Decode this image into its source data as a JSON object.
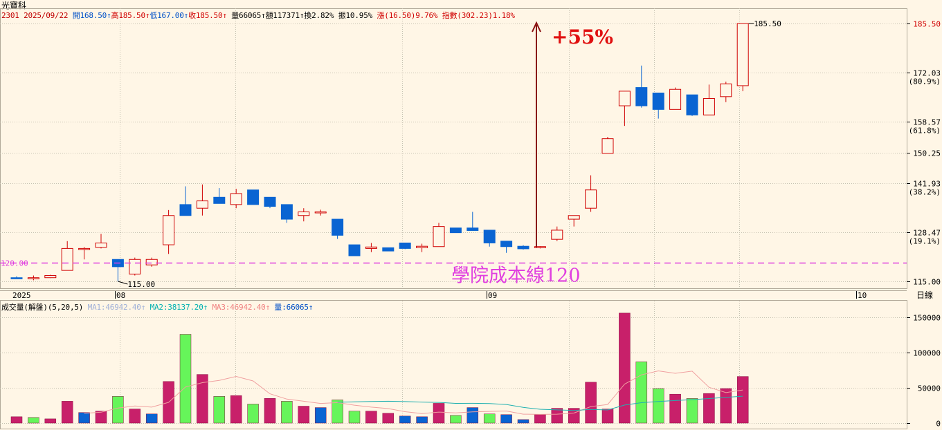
{
  "app": {
    "title": "光寶科"
  },
  "info_bar": [
    {
      "text": "2301 2025/09/22",
      "color": "#c00000"
    },
    {
      "text": " 開168.50↑",
      "color": "#0050c8"
    },
    {
      "text": "高185.50↑",
      "color": "#d00000"
    },
    {
      "text": "低167.00↑",
      "color": "#0050c8"
    },
    {
      "text": "收185.50↑",
      "color": "#d00000"
    },
    {
      "text": " 量66065↑",
      "color": "#000000"
    },
    {
      "text": "額117371↑",
      "color": "#000000"
    },
    {
      "text": "換2.82%",
      "color": "#000000"
    },
    {
      "text": " 振10.95%",
      "color": "#000000"
    },
    {
      "text": " 漲(16.50)9.76%",
      "color": "#d00000"
    },
    {
      "text": " 指數(302.23)1.18%",
      "color": "#d00000"
    }
  ],
  "volume_bar": [
    {
      "text": "成交量(解盤)(5,20,5)",
      "color": "#000000"
    },
    {
      "text": " MA1:46942.40↑",
      "color": "#9fb0d8"
    },
    {
      "text": " MA2:38137.20↑",
      "color": "#00b0b0"
    },
    {
      "text": " MA3:46942.40↑",
      "color": "#f08080"
    },
    {
      "text": " 量:66065↑",
      "color": "#0050c8"
    }
  ],
  "colors": {
    "up": "#d00000",
    "down": "#0a64d2",
    "vol_up": "#c8206a",
    "vol_down": "#66f55a",
    "background": "#fff6e6",
    "grid": "#c8c0b0",
    "ma_line": "#e040e0"
  },
  "chart_data": [
    {
      "type": "candlestick",
      "ylim": [
        112,
        188
      ],
      "y_ticks": [
        {
          "v": 115.0,
          "label": "115.00"
        },
        {
          "v": 128.47,
          "label": "128.47",
          "sub": "(19.1%)"
        },
        {
          "v": 141.93,
          "label": "141.93",
          "sub": "(38.2%)"
        },
        {
          "v": 150.25,
          "label": "150.25"
        },
        {
          "v": 158.57,
          "label": "158.57",
          "sub": "(61.8%)"
        },
        {
          "v": 172.03,
          "label": "172.03",
          "sub": "(80.9%)"
        },
        {
          "v": 185.5,
          "label": "185.50",
          "highlight": true
        }
      ],
      "x_labels": [
        "2025",
        "08",
        "09",
        "10",
        "日線"
      ],
      "candles": [
        {
          "o": 116,
          "h": 116.4,
          "l": 115.7,
          "c": 115.7
        },
        {
          "o": 116,
          "h": 116.6,
          "l": 115.3,
          "c": 116
        },
        {
          "o": 116,
          "h": 116.8,
          "l": 115.9,
          "c": 116.6
        },
        {
          "o": 118,
          "h": 126,
          "l": 118,
          "c": 124
        },
        {
          "o": 124,
          "h": 124.4,
          "l": 121,
          "c": 124
        },
        {
          "o": 124.3,
          "h": 128,
          "l": 124,
          "c": 125.5
        },
        {
          "o": 121,
          "h": 121,
          "l": 115,
          "c": 119
        },
        {
          "o": 117,
          "h": 121.5,
          "l": 116.6,
          "c": 121
        },
        {
          "o": 119.5,
          "h": 121.5,
          "l": 119,
          "c": 121
        },
        {
          "o": 125,
          "h": 134.5,
          "l": 122.5,
          "c": 133
        },
        {
          "o": 136,
          "h": 141,
          "l": 133,
          "c": 133
        },
        {
          "o": 135,
          "h": 141.5,
          "l": 133,
          "c": 137
        },
        {
          "o": 138,
          "h": 140.5,
          "l": 136.3,
          "c": 136.3
        },
        {
          "o": 136,
          "h": 140.3,
          "l": 135,
          "c": 139
        },
        {
          "o": 140,
          "h": 140,
          "l": 136,
          "c": 136
        },
        {
          "o": 138,
          "h": 138,
          "l": 135,
          "c": 135.5
        },
        {
          "o": 136,
          "h": 136,
          "l": 131,
          "c": 132
        },
        {
          "o": 133,
          "h": 135,
          "l": 131.4,
          "c": 134
        },
        {
          "o": 134,
          "h": 134.6,
          "l": 133,
          "c": 134
        },
        {
          "o": 132,
          "h": 132,
          "l": 126.6,
          "c": 127.6
        },
        {
          "o": 125,
          "h": 125,
          "l": 122,
          "c": 122
        },
        {
          "o": 124,
          "h": 125.5,
          "l": 123,
          "c": 124.4
        },
        {
          "o": 124.2,
          "h": 124.2,
          "l": 123.3,
          "c": 123.3
        },
        {
          "o": 125.5,
          "h": 125.5,
          "l": 123.8,
          "c": 124
        },
        {
          "o": 124.2,
          "h": 125.3,
          "l": 123,
          "c": 124.6
        },
        {
          "o": 124.5,
          "h": 131,
          "l": 124.5,
          "c": 130
        },
        {
          "o": 129.6,
          "h": 129.6,
          "l": 128.3,
          "c": 128.3
        },
        {
          "o": 129.6,
          "h": 134,
          "l": 128.9,
          "c": 128.9
        },
        {
          "o": 129,
          "h": 129,
          "l": 124.5,
          "c": 125.5
        },
        {
          "o": 126,
          "h": 126,
          "l": 122.8,
          "c": 124.5
        },
        {
          "o": 124.6,
          "h": 124.9,
          "l": 123.7,
          "c": 123.9
        },
        {
          "o": 124.3,
          "h": 124.6,
          "l": 124,
          "c": 124.5
        },
        {
          "o": 126.5,
          "h": 130,
          "l": 126,
          "c": 129
        },
        {
          "o": 132,
          "h": 133,
          "l": 130,
          "c": 133
        },
        {
          "o": 135,
          "h": 144,
          "l": 134,
          "c": 140
        },
        {
          "o": 150,
          "h": 154.5,
          "l": 150,
          "c": 154
        },
        {
          "o": 163,
          "h": 167,
          "l": 157.5,
          "c": 167
        },
        {
          "o": 168,
          "h": 174,
          "l": 162.5,
          "c": 163
        },
        {
          "o": 166.5,
          "h": 166.5,
          "l": 159.5,
          "c": 162
        },
        {
          "o": 162,
          "h": 168,
          "l": 162,
          "c": 167.5
        },
        {
          "o": 166,
          "h": 166,
          "l": 160.2,
          "c": 160.5
        },
        {
          "o": 160.5,
          "h": 168.8,
          "l": 160.5,
          "c": 165
        },
        {
          "o": 165.5,
          "h": 169.6,
          "l": 164,
          "c": 169
        },
        {
          "o": 168.5,
          "h": 185.5,
          "l": 167,
          "c": 185.5
        }
      ],
      "annotations": {
        "max_label": "185.50",
        "min_label": "115.00",
        "left_ref_label": "120.00",
        "line_label": "學院成本線120",
        "line_value": 120,
        "gain_label": "+55%"
      }
    },
    {
      "type": "bar",
      "title": "成交量(解盤)(5,20,5)",
      "ylim": [
        0,
        160000
      ],
      "y_ticks": [
        {
          "v": 0,
          "label": "0"
        },
        {
          "v": 50000,
          "label": "50000"
        },
        {
          "v": 100000,
          "label": "100000"
        },
        {
          "v": 150000,
          "label": "150000"
        }
      ],
      "values": [
        9000,
        8000,
        6000,
        31000,
        15000,
        17000,
        38000,
        20000,
        13000,
        59000,
        126000,
        69000,
        38000,
        39000,
        27000,
        35000,
        31000,
        24000,
        22000,
        33000,
        17000,
        17000,
        14000,
        10000,
        9000,
        28000,
        11000,
        22000,
        13000,
        12000,
        5000,
        12000,
        21000,
        21000,
        58000,
        20000,
        156000,
        87000,
        49000,
        41000,
        35000,
        42000,
        49000,
        66065
      ],
      "colors": [
        "r",
        "g",
        "r",
        "r",
        "b",
        "r",
        "g",
        "r",
        "b",
        "r",
        "g",
        "r",
        "g",
        "r",
        "g",
        "r",
        "g",
        "r",
        "b",
        "g",
        "g",
        "r",
        "r",
        "b",
        "b",
        "r",
        "g",
        "b",
        "g",
        "b",
        "b",
        "r",
        "r",
        "r",
        "r",
        "r",
        "r",
        "g",
        "g",
        "r",
        "g",
        "r",
        "r",
        "r"
      ],
      "ma5": [
        null,
        null,
        null,
        null,
        13800,
        15400,
        21400,
        24200,
        22600,
        29400,
        51200,
        57400,
        60600,
        66200,
        59800,
        41600,
        34000,
        31000,
        27800,
        29000,
        25400,
        22600,
        20600,
        16200,
        13400,
        15600,
        14400,
        16000,
        16600,
        17200,
        12600,
        12400,
        12600,
        14200,
        23400,
        26400,
        55200,
        68400,
        74000,
        70600,
        73600,
        50800,
        43200,
        46942
      ],
      "ma20": [
        null,
        null,
        null,
        null,
        null,
        null,
        null,
        null,
        null,
        null,
        null,
        null,
        null,
        null,
        null,
        null,
        null,
        null,
        null,
        29700,
        30100,
        30600,
        31000,
        30500,
        29800,
        29300,
        27900,
        28000,
        27700,
        26400,
        22300,
        19600,
        18700,
        17800,
        19300,
        18600,
        25600,
        28900,
        30700,
        32000,
        33200,
        34800,
        36600,
        38137
      ]
    }
  ]
}
